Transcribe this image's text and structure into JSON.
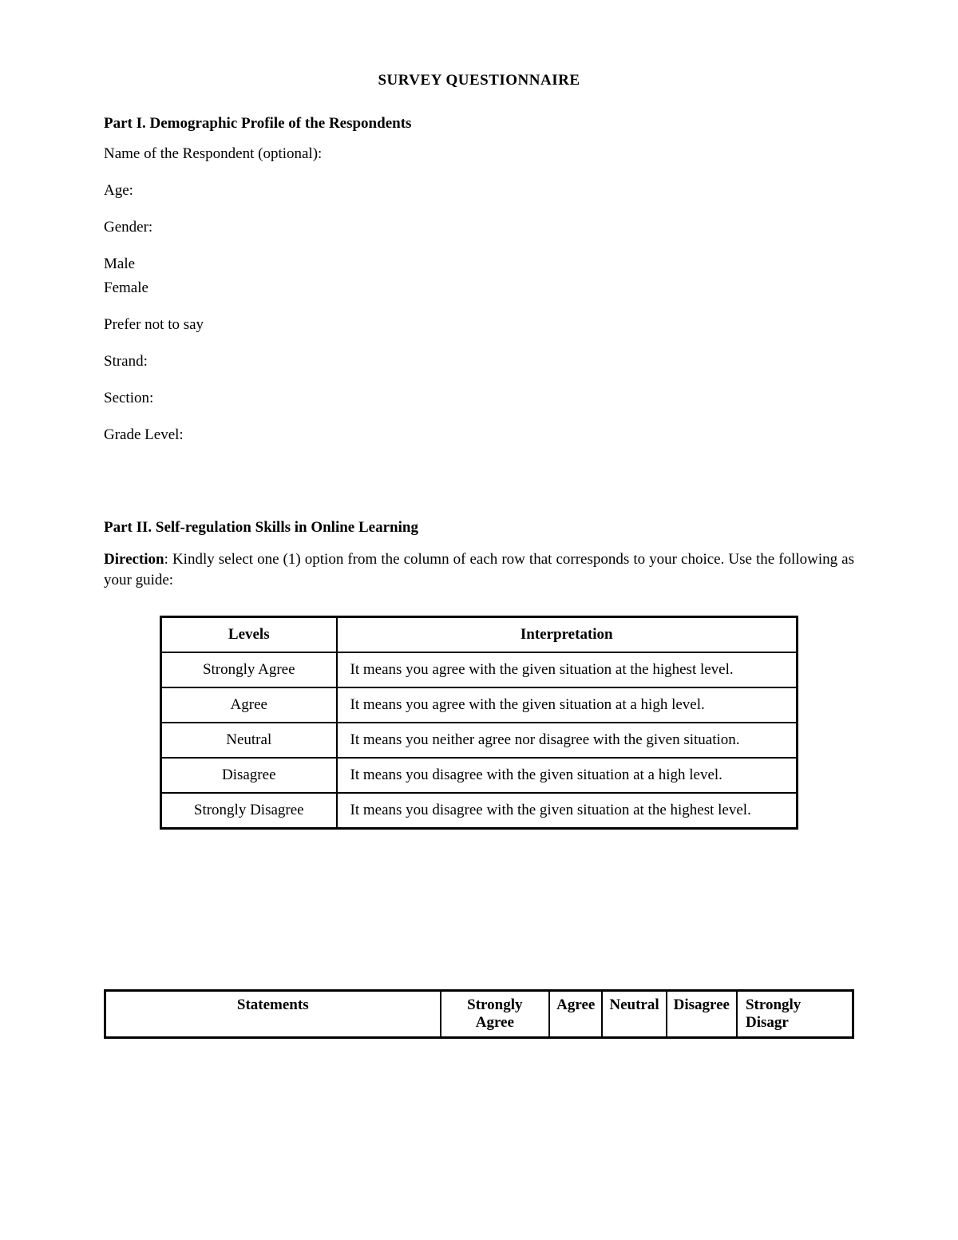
{
  "title": "SURVEY QUESTIONNAIRE",
  "part1": {
    "heading": "Part I. Demographic Profile of the Respondents",
    "fields": {
      "name": "Name of the Respondent (optional):",
      "age": "Age:",
      "gender": "Gender:",
      "male": "Male",
      "female": "Female",
      "prefer_not": "Prefer not to say",
      "strand": "Strand:",
      "section": "Section:",
      "grade_level": "Grade Level:"
    }
  },
  "part2": {
    "heading": "Part II. Self-regulation Skills in Online Learning",
    "direction_label": "Direction",
    "direction_text": ": Kindly select one (1) option from the column of each row that corresponds to your choice. Use the following as your guide:"
  },
  "interpretation_table": {
    "columns": [
      "Levels",
      "Interpretation"
    ],
    "rows": [
      [
        "Strongly Agree",
        "It means you agree with the given situation at the highest level."
      ],
      [
        "Agree",
        "It means you agree with the given situation at a high level."
      ],
      [
        "Neutral",
        "It means you neither agree nor disagree with the given situation."
      ],
      [
        "Disagree",
        "It means you disagree with the given situation at a high level."
      ],
      [
        "Strongly Disagree",
        "It means you disagree with the given situation at the highest level."
      ]
    ]
  },
  "statements_table": {
    "columns": {
      "statements": "Statements",
      "strongly_agree": "Strongly Agree",
      "agree": "Agree",
      "neutral": "Neutral",
      "disagree": "Disagree",
      "strongly_disagree": "Strongly Disagr"
    }
  }
}
